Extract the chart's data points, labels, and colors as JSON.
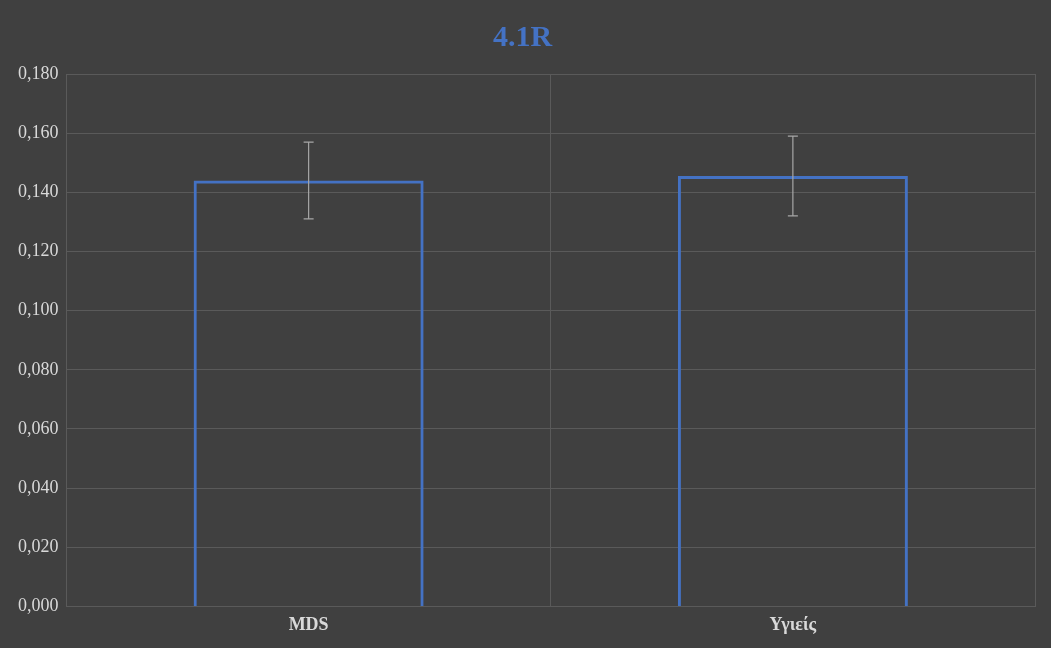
{
  "chart_data": {
    "type": "bar",
    "title": "4.1R",
    "categories": [
      "MDS",
      "Υγιείς"
    ],
    "values": [
      0.144,
      0.1455
    ],
    "errors": [
      0.013,
      0.0135
    ],
    "color": "#4472c4",
    "ylim": [
      0,
      0.18
    ],
    "yticks": [
      {
        "value": 0,
        "label": "0,000"
      },
      {
        "value": 0.02,
        "label": "0,020"
      },
      {
        "value": 0.04,
        "label": "0,040"
      },
      {
        "value": 0.06,
        "label": "0,060"
      },
      {
        "value": 0.08,
        "label": "0,080"
      },
      {
        "value": 0.1,
        "label": "0,100"
      },
      {
        "value": 0.12,
        "label": "0,120"
      },
      {
        "value": 0.14,
        "label": "0,140"
      },
      {
        "value": 0.16,
        "label": "0,160"
      },
      {
        "value": 0.18,
        "label": "0,180"
      }
    ],
    "grid": true
  }
}
